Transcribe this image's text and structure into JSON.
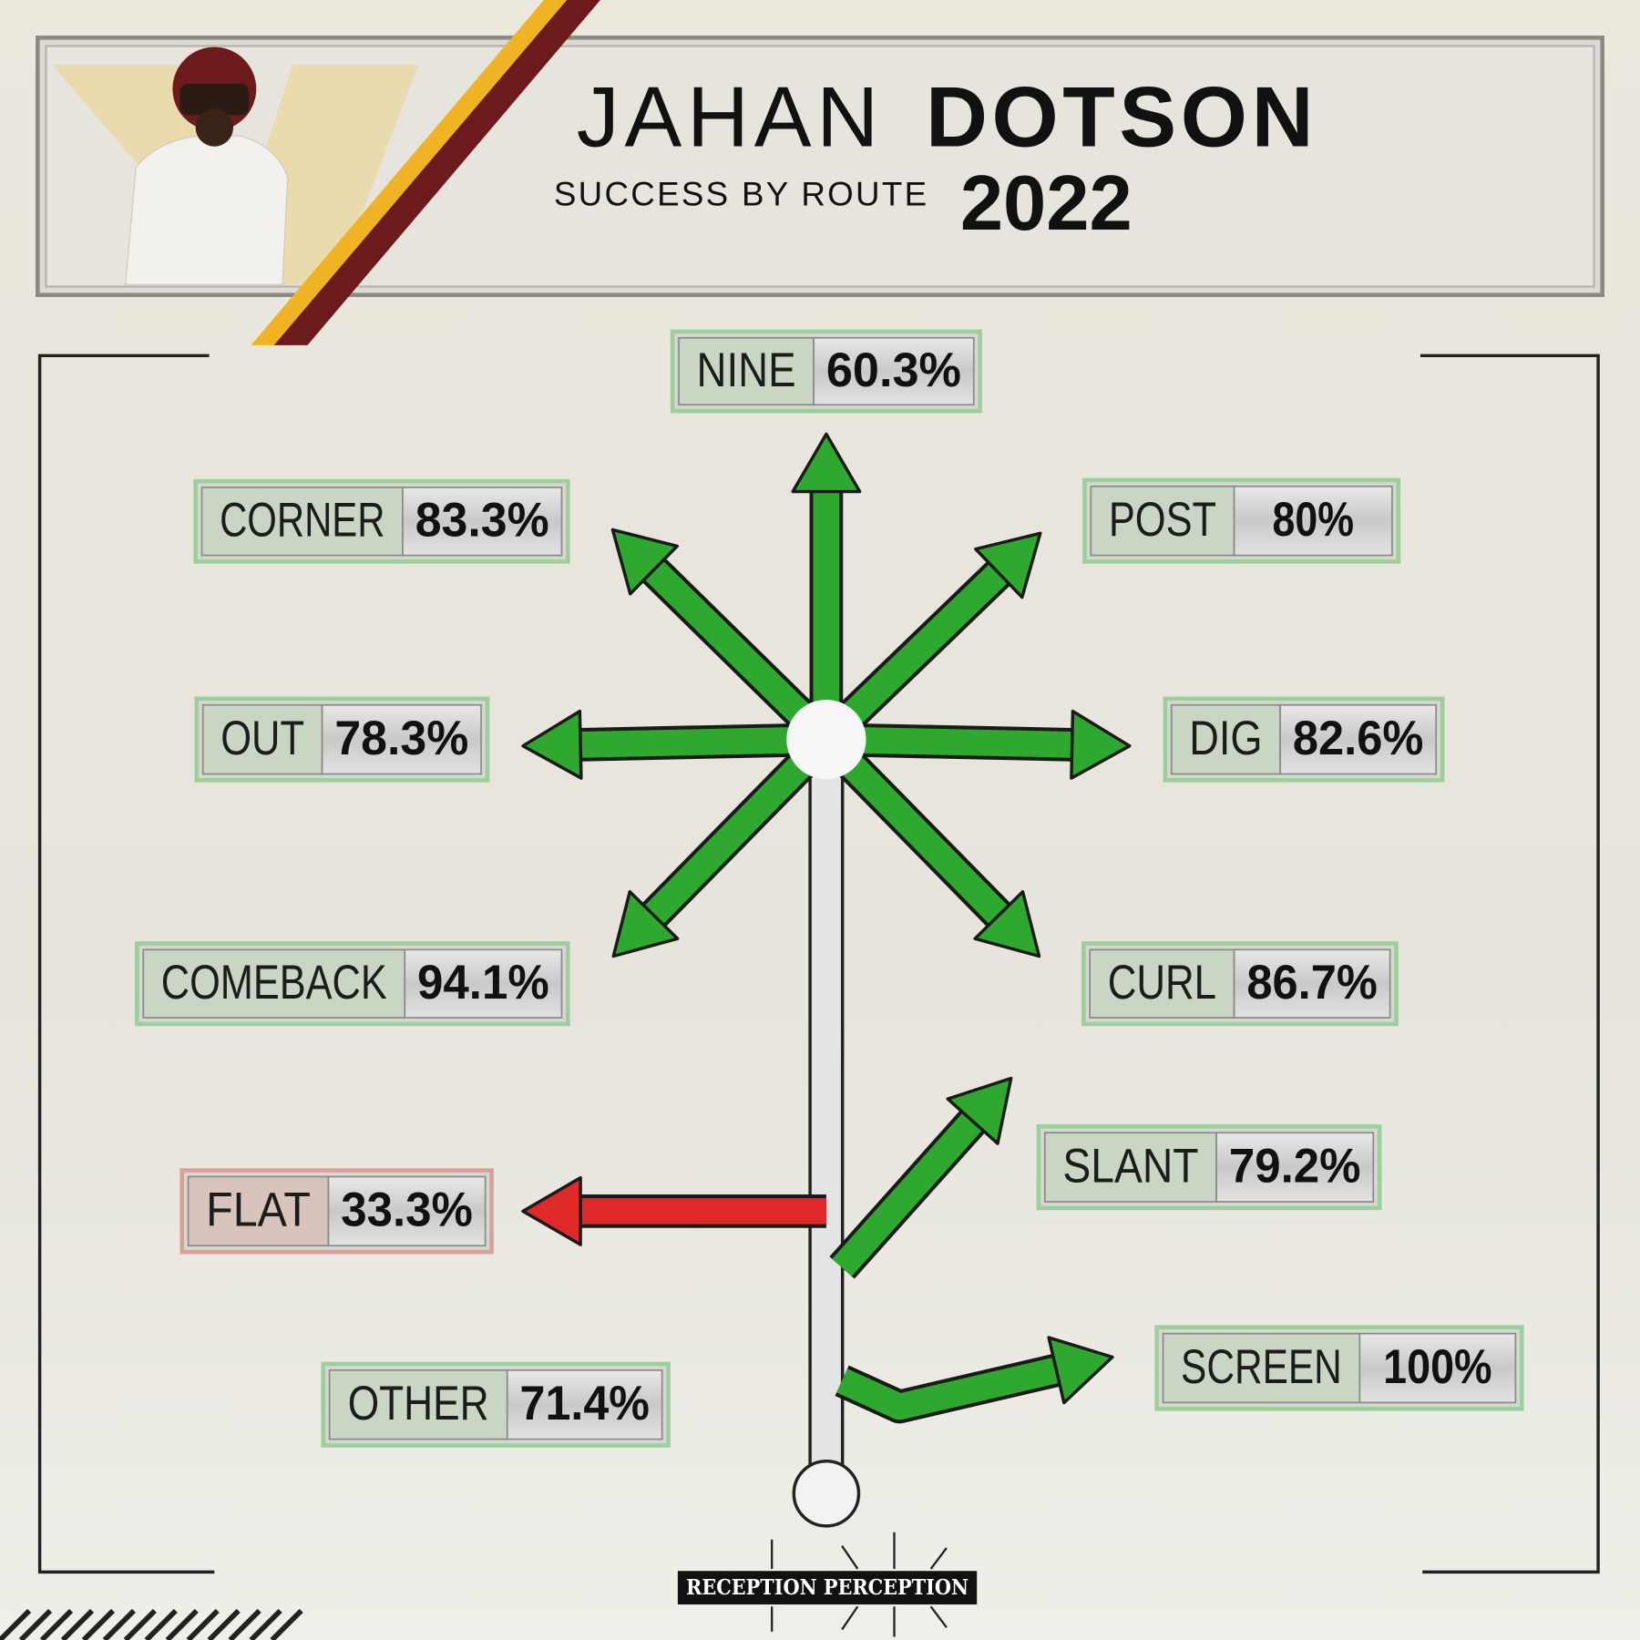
{
  "header": {
    "first_name": "JAHAN",
    "last_name": "DOTSON",
    "subtitle": "SUCCESS BY ROUTE",
    "year": "2022"
  },
  "routes": [
    {
      "name": "NINE",
      "value": "60.3%",
      "color": "#2fa82f"
    },
    {
      "name": "CORNER",
      "value": "83.3%",
      "color": "#2fa82f"
    },
    {
      "name": "POST",
      "value": "80%",
      "color": "#2fa82f"
    },
    {
      "name": "OUT",
      "value": "78.3%",
      "color": "#2fa82f"
    },
    {
      "name": "DIG",
      "value": "82.6%",
      "color": "#2fa82f"
    },
    {
      "name": "COMEBACK",
      "value": "94.1%",
      "color": "#2fa82f"
    },
    {
      "name": "CURL",
      "value": "86.7%",
      "color": "#2fa82f"
    },
    {
      "name": "FLAT",
      "value": "33.3%",
      "color": "#e02a2a"
    },
    {
      "name": "SLANT",
      "value": "79.2%",
      "color": "#2fa82f"
    },
    {
      "name": "OTHER",
      "value": "71.4%",
      "color": "#2fa82f"
    },
    {
      "name": "SCREEN",
      "value": "100%",
      "color": "#2fa82f"
    }
  ],
  "footer": {
    "brand": "RECEPTION PERCEPTION"
  }
}
